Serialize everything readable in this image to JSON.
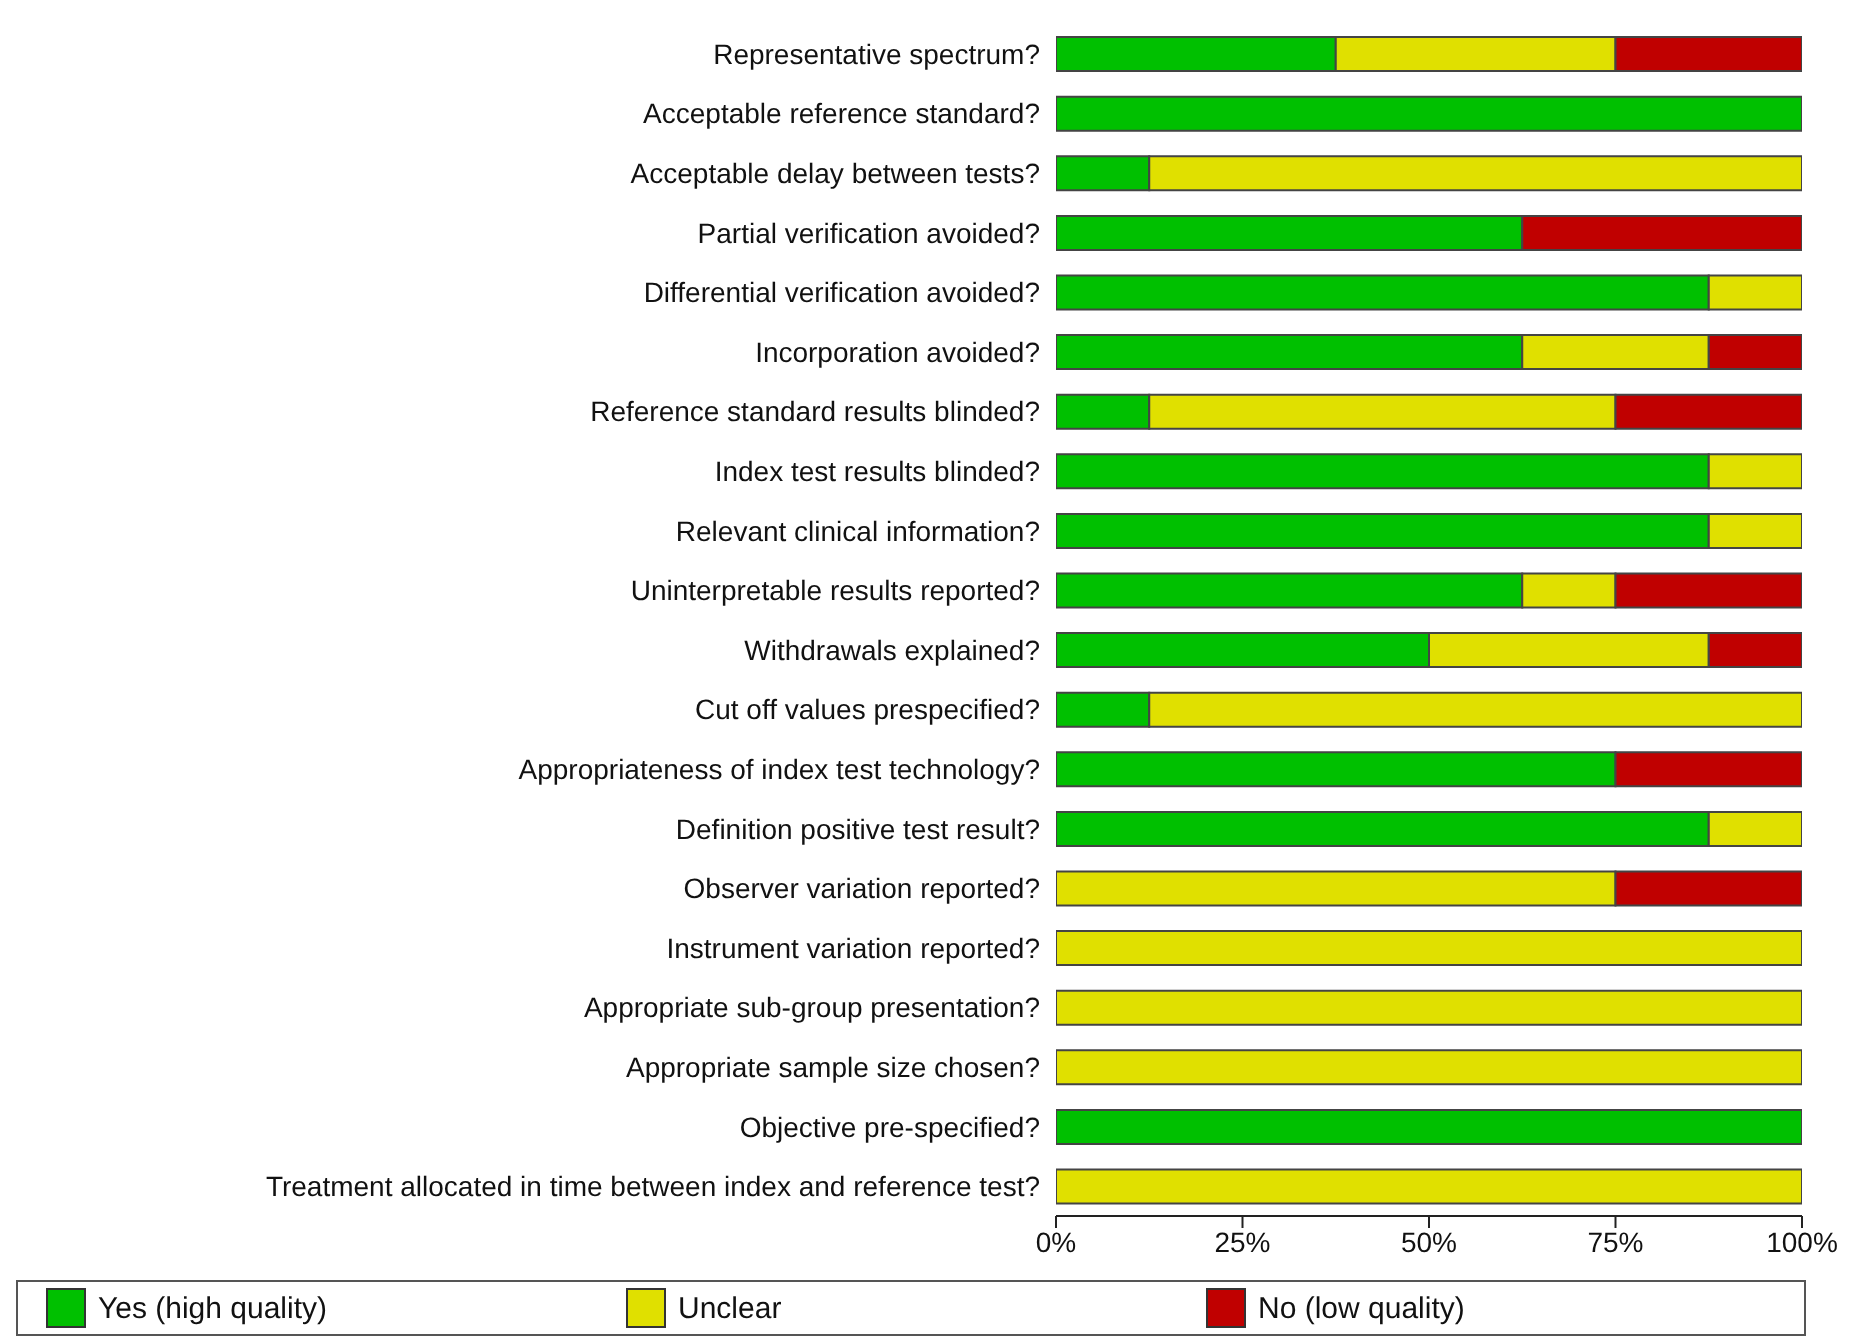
{
  "chart_data": {
    "type": "bar",
    "orientation": "horizontal",
    "stacked": true,
    "categories": [
      "Representative spectrum?",
      "Acceptable reference standard?",
      "Acceptable delay between tests?",
      "Partial verification avoided?",
      "Differential verification avoided?",
      "Incorporation avoided?",
      "Reference standard results blinded?",
      "Index test results blinded?",
      "Relevant clinical information?",
      "Uninterpretable results reported?",
      "Withdrawals explained?",
      "Cut off values prespecified?",
      "Appropriateness of index test technology?",
      "Definition positive test result?",
      "Observer variation reported?",
      "Instrument variation reported?",
      "Appropriate sub-group presentation?",
      "Appropriate sample size chosen?",
      "Objective pre-specified?",
      "Treatment allocated in time between index and reference test?"
    ],
    "series": [
      {
        "name": "Yes (high quality)",
        "color": "#00c000",
        "values": [
          37.5,
          100,
          12.5,
          62.5,
          87.5,
          62.5,
          12.5,
          87.5,
          87.5,
          62.5,
          50,
          12.5,
          75,
          87.5,
          0,
          0,
          0,
          0,
          100,
          0
        ]
      },
      {
        "name": "Unclear",
        "color": "#e0e000",
        "values": [
          37.5,
          0,
          87.5,
          0,
          12.5,
          25,
          62.5,
          12.5,
          12.5,
          12.5,
          37.5,
          87.5,
          0,
          12.5,
          75,
          100,
          100,
          100,
          0,
          100
        ]
      },
      {
        "name": "No (low quality)",
        "color": "#c00000",
        "values": [
          25,
          0,
          0,
          37.5,
          0,
          12.5,
          25,
          0,
          0,
          25,
          12.5,
          0,
          25,
          0,
          25,
          0,
          0,
          0,
          0,
          0
        ]
      }
    ],
    "xlim": [
      0,
      100
    ],
    "xticks": [
      {
        "value": 0,
        "label": "0%"
      },
      {
        "value": 25,
        "label": "25%"
      },
      {
        "value": 50,
        "label": "50%"
      },
      {
        "value": 75,
        "label": "75%"
      },
      {
        "value": 100,
        "label": "100%"
      }
    ],
    "grid": false,
    "legend": "bottom"
  }
}
